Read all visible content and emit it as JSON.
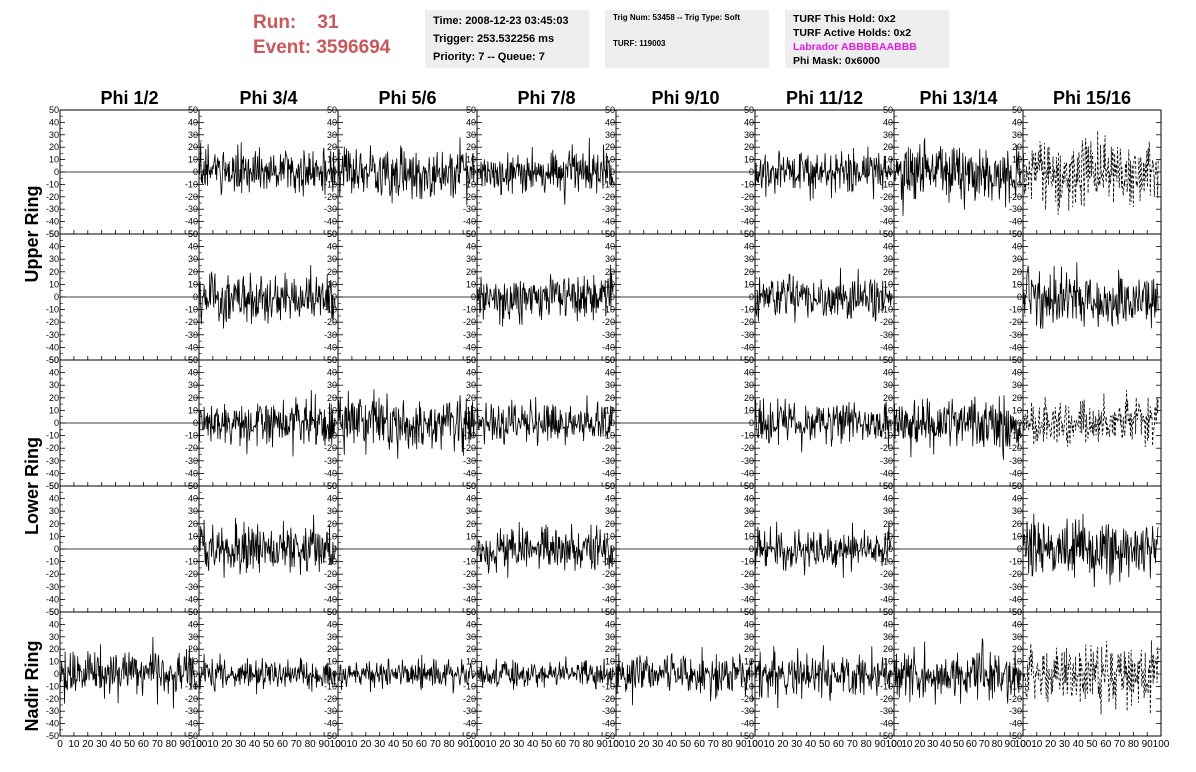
{
  "header": {
    "run_label": "Run:",
    "run_value": "31",
    "event_label": "Event:",
    "event_value": "3596694",
    "time": "Time: 2008-12-23 03:45:03",
    "trigger": "Trigger: 253.532256 ms",
    "priority": "Priority: 7 -- Queue: 7",
    "trig_num": "Trig Num: 53458 -- Trig Type: Soft",
    "turf": "TURF: 119003",
    "turf_this_hold": "TURF This Hold: 0x2",
    "turf_active_holds": "TURF Active Holds: 0x2",
    "labrador": "Labrador ABBBBAABBB",
    "phi_mask": "Phi Mask: 0x6000",
    "colors": {
      "run_text": "#c9585b",
      "labrador_text": "#e01de0",
      "info_box_bg": "#eeeeee"
    }
  },
  "chart_data": {
    "type": "line",
    "columns": [
      "Phi 1/2",
      "Phi 3/4",
      "Phi 5/6",
      "Phi 7/8",
      "Phi 9/10",
      "Phi 11/12",
      "Phi 13/14",
      "Phi 15/16"
    ],
    "rows": [
      "Upper Ring",
      "Lower Ring",
      "Nadir Ring"
    ],
    "ylim": [
      -50,
      50
    ],
    "xlim": [
      0,
      100
    ],
    "y_ticks": [
      -50,
      -40,
      -30,
      -20,
      -10,
      0,
      10,
      20,
      30,
      40,
      50
    ],
    "x_ticks": [
      0,
      10,
      20,
      30,
      40,
      50,
      60,
      70,
      80,
      90,
      100
    ],
    "panel_rows": [
      {
        "ring": "Upper Ring",
        "panels": [
          {
            "col": 1,
            "mode": "flat"
          },
          {
            "col": 2,
            "mode": "noise",
            "amp": 14
          },
          {
            "col": 3,
            "mode": "noise",
            "amp": 15
          },
          {
            "col": 4,
            "mode": "noise",
            "amp": 13
          },
          {
            "col": 5,
            "mode": "flat"
          },
          {
            "col": 6,
            "mode": "noise",
            "amp": 12
          },
          {
            "col": 7,
            "mode": "noise",
            "amp": 17
          },
          {
            "col": 8,
            "mode": "dashed",
            "amp": 18
          }
        ]
      },
      {
        "ring": "Upper Ring",
        "panels": [
          {
            "col": 1,
            "mode": "flat"
          },
          {
            "col": 2,
            "mode": "noise",
            "amp": 15
          },
          {
            "col": 3,
            "mode": "flat"
          },
          {
            "col": 4,
            "mode": "noise",
            "amp": 13
          },
          {
            "col": 5,
            "mode": "flat"
          },
          {
            "col": 6,
            "mode": "noise",
            "amp": 12
          },
          {
            "col": 7,
            "mode": "flat"
          },
          {
            "col": 8,
            "mode": "noise",
            "amp": 17
          }
        ]
      },
      {
        "ring": "Lower Ring",
        "panels": [
          {
            "col": 1,
            "mode": "flat"
          },
          {
            "col": 2,
            "mode": "noise",
            "amp": 13
          },
          {
            "col": 3,
            "mode": "noise",
            "amp": 16
          },
          {
            "col": 4,
            "mode": "noise",
            "amp": 12
          },
          {
            "col": 5,
            "mode": "flat"
          },
          {
            "col": 6,
            "mode": "noise",
            "amp": 12
          },
          {
            "col": 7,
            "mode": "noise",
            "amp": 14
          },
          {
            "col": 8,
            "mode": "dashed",
            "amp": 12
          }
        ]
      },
      {
        "ring": "Lower Ring",
        "panels": [
          {
            "col": 1,
            "mode": "flat"
          },
          {
            "col": 2,
            "mode": "noise",
            "amp": 14
          },
          {
            "col": 3,
            "mode": "flat"
          },
          {
            "col": 4,
            "mode": "noise",
            "amp": 12
          },
          {
            "col": 5,
            "mode": "flat"
          },
          {
            "col": 6,
            "mode": "noise",
            "amp": 11
          },
          {
            "col": 7,
            "mode": "flat"
          },
          {
            "col": 8,
            "mode": "noise",
            "amp": 16
          }
        ]
      },
      {
        "ring": "Nadir Ring",
        "panels": [
          {
            "col": 1,
            "mode": "noise",
            "amp": 14
          },
          {
            "col": 2,
            "mode": "noise",
            "amp": 9
          },
          {
            "col": 3,
            "mode": "noise",
            "amp": 9
          },
          {
            "col": 4,
            "mode": "noise",
            "amp": 8
          },
          {
            "col": 5,
            "mode": "noise",
            "amp": 12
          },
          {
            "col": 6,
            "mode": "noise",
            "amp": 13
          },
          {
            "col": 7,
            "mode": "noise",
            "amp": 15
          },
          {
            "col": 8,
            "mode": "dashed",
            "amp": 18
          }
        ]
      }
    ]
  }
}
